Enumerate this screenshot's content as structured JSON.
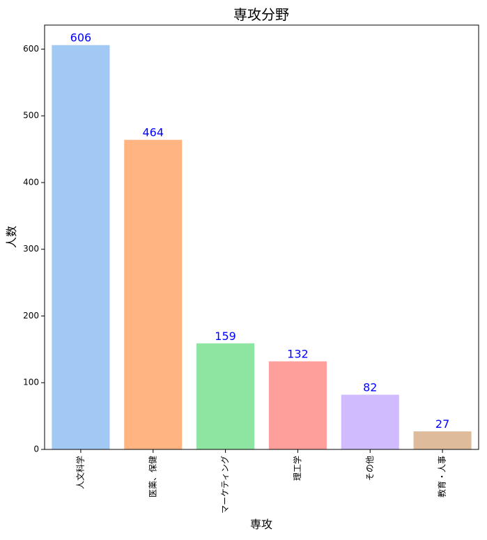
{
  "chart_data": {
    "type": "bar",
    "title": "専攻分野",
    "xlabel": "専攻",
    "ylabel": "人数",
    "categories": [
      "人文科学",
      "医薬、保健",
      "マーケティング",
      "理工学",
      "その他",
      "教育・人事"
    ],
    "values": [
      606,
      464,
      159,
      132,
      82,
      27
    ],
    "ylim": [
      0,
      636
    ],
    "yticks": [
      0,
      100,
      200,
      300,
      400,
      500,
      600
    ],
    "grid": false,
    "legend": "none",
    "colors": [
      "#a1c9f4",
      "#ffb482",
      "#8de5a1",
      "#ff9f9b",
      "#d0bbff",
      "#debb9b"
    ],
    "data_label_color": "#0000ff",
    "x_tick_rotation": 90
  }
}
